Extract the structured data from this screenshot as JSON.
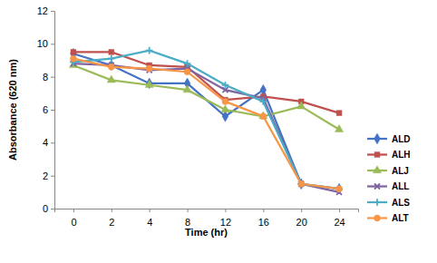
{
  "chart_data": {
    "type": "line",
    "x_label": "Time (hr)",
    "y_label": "Absorbance (620 nm)",
    "categories": [
      "0",
      "2",
      "4",
      "8",
      "12",
      "16",
      "20",
      "24"
    ],
    "ylim": [
      0,
      12
    ],
    "yticks": [
      0,
      2,
      4,
      6,
      8,
      10,
      12
    ],
    "grid": false,
    "legend": "right",
    "series": [
      {
        "name": "ALD",
        "color": "#4472c4",
        "marker": "diamond",
        "values": [
          9.4,
          8.7,
          7.6,
          7.6,
          5.6,
          7.2,
          1.5,
          1.2
        ]
      },
      {
        "name": "ALH",
        "color": "#c0504d",
        "marker": "square",
        "values": [
          9.5,
          9.5,
          8.7,
          8.6,
          6.6,
          6.8,
          6.5,
          5.8
        ]
      },
      {
        "name": "ALJ",
        "color": "#9bbb59",
        "marker": "triangle",
        "values": [
          8.7,
          7.8,
          7.5,
          7.2,
          6.0,
          5.6,
          6.2,
          4.8
        ]
      },
      {
        "name": "ALL",
        "color": "#8064a2",
        "marker": "x",
        "values": [
          8.8,
          8.7,
          8.4,
          8.5,
          7.2,
          6.7,
          1.5,
          1.0
        ]
      },
      {
        "name": "ALS",
        "color": "#4bacc6",
        "marker": "plus",
        "values": [
          8.9,
          9.1,
          9.6,
          8.8,
          7.5,
          6.5,
          1.5,
          1.2
        ]
      },
      {
        "name": "ALT",
        "color": "#f79646",
        "marker": "circle",
        "values": [
          9.1,
          8.6,
          8.5,
          8.3,
          6.5,
          5.6,
          1.5,
          1.2
        ]
      }
    ]
  }
}
